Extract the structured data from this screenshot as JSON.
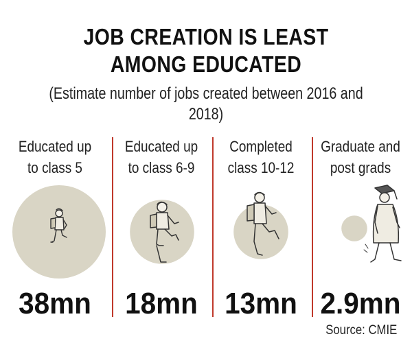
{
  "chart_data": {
    "type": "bubble",
    "title_lines": [
      "JOB CREATION IS LEAST",
      "AMONG EDUCATED"
    ],
    "subtitle": "(Estimate number of jobs created between 2016 and 2018)",
    "categories": [
      [
        "Educated up",
        "to class 5"
      ],
      [
        "Educated up",
        "to class 6-9"
      ],
      [
        "Completed",
        "class 10-12"
      ],
      [
        "Graduate and",
        "post grads"
      ]
    ],
    "values": [
      38,
      18,
      13,
      2.9
    ],
    "value_labels": [
      "38mn",
      "18mn",
      "13mn",
      "2.9mn"
    ],
    "unit": "mn",
    "source": "Source: CMIE"
  },
  "colors": {
    "bubble": "#d9d5c5",
    "divider": "#c0392b",
    "text": "#111111"
  },
  "icons": [
    "schoolboy-icon",
    "student-walking-icon",
    "student-walking-icon",
    "graduate-walking-icon"
  ]
}
